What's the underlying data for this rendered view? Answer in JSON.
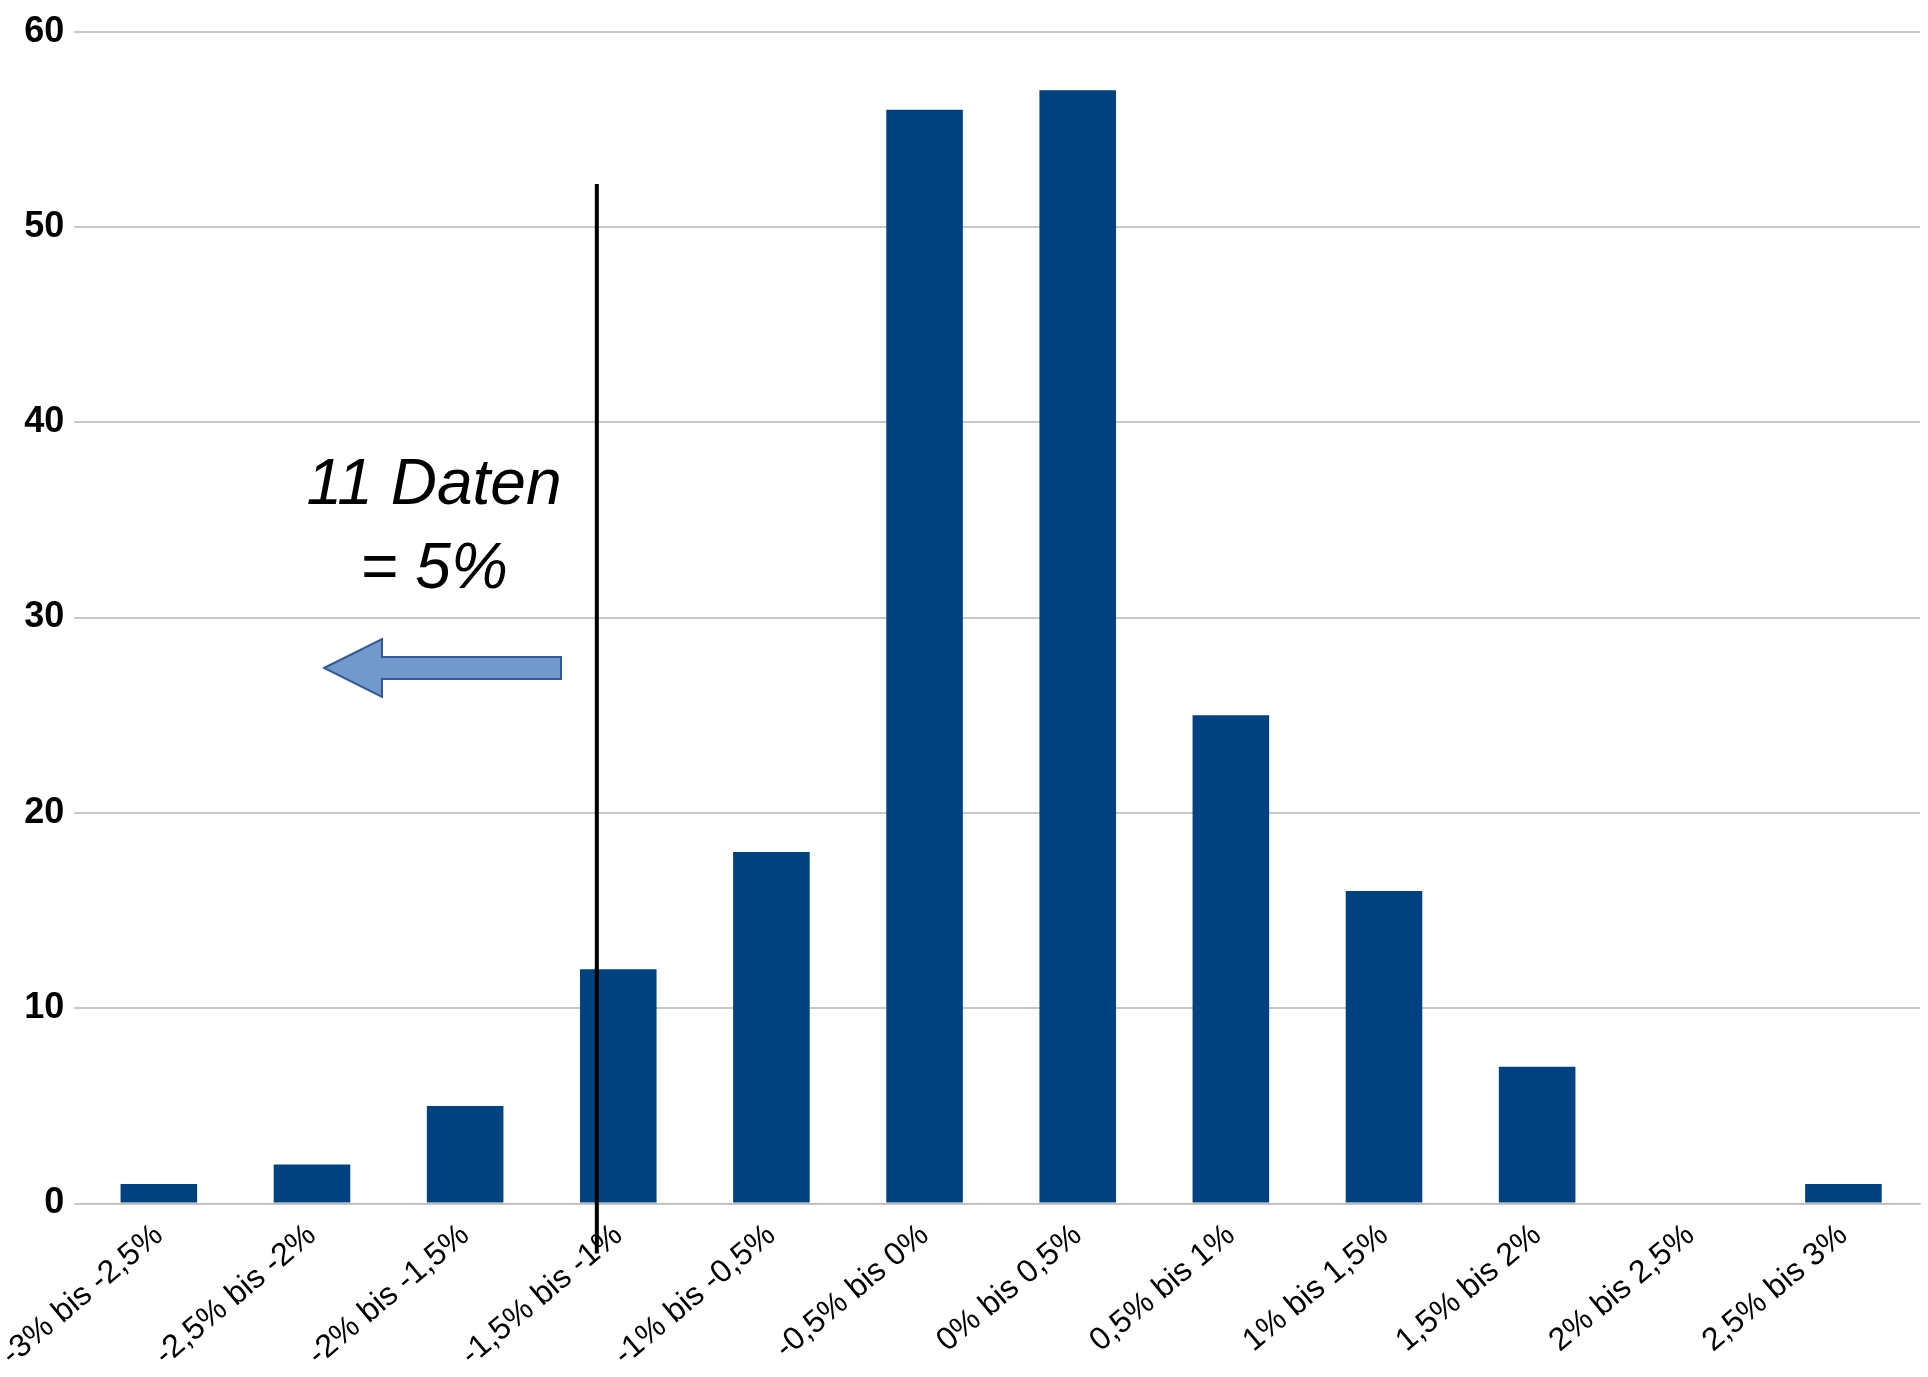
{
  "chart_data": {
    "type": "bar",
    "categories": [
      "-3% bis -2,5%",
      "-2,5% bis -2%",
      "-2% bis -1,5%",
      "-1,5% bis -1%",
      "-1% bis -0,5%",
      "-0,5% bis 0%",
      "0% bis 0,5%",
      "0,5% bis 1%",
      "1% bis 1,5%",
      "1,5% bis 2%",
      "2% bis 2,5%",
      "2,5% bis 3%"
    ],
    "values": [
      1,
      2,
      5,
      12,
      18,
      56,
      57,
      25,
      16,
      7,
      0,
      1
    ],
    "color": "#00417f",
    "ylim": [
      0,
      60
    ],
    "yticks": [
      0,
      10,
      20,
      30,
      40,
      50,
      60
    ],
    "grid": "y",
    "legend": false,
    "ref_lines": [
      {
        "axis": "x",
        "value": "-1,5% bis -1%",
        "color": "#000000"
      }
    ],
    "annotations": [
      "11 Daten\n= 5%"
    ]
  }
}
